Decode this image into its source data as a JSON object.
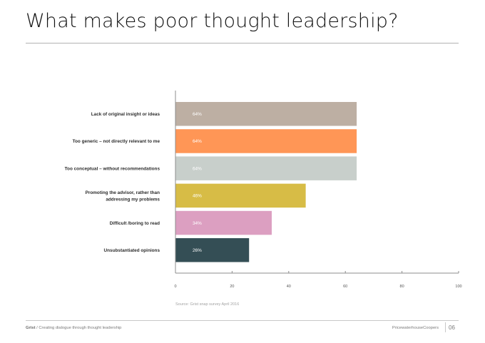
{
  "page": {
    "title": "What makes poor thought leadership?",
    "source": "Source: Grist snap survey April 2016",
    "footer": {
      "brand": "Grist",
      "tagline": " / Creating dialogue through thought leadership",
      "company": "PricewaterhouseCoopers",
      "page_number": "06"
    }
  },
  "chart_data": {
    "type": "bar",
    "orientation": "horizontal",
    "categories": [
      "Lack of original insight or ideas",
      "Too generic – not directly relevant to me",
      "Too conceptual – without recommendations",
      "Promoting the advisor, rather than addressing my problems",
      "Difficult /boring to read",
      "Unsubstantiated opinions"
    ],
    "label_lines": [
      [
        "Lack of original insight or ideas"
      ],
      [
        "Too generic – not directly relevant to me"
      ],
      [
        "Too conceptual – without recommendations"
      ],
      [
        "Promoting the advisor, rather than",
        "addressing my problems"
      ],
      [
        "Difficult /boring to read"
      ],
      [
        "Unsubstantiated opinions"
      ]
    ],
    "values": [
      64,
      64,
      64,
      46,
      34,
      26
    ],
    "value_labels": [
      "64%",
      "64%",
      "64%",
      "46%",
      "34%",
      "26%"
    ],
    "colors": [
      "#bdafa3",
      "#ff9656",
      "#c8cfcb",
      "#d7bc46",
      "#dc9fc1",
      "#344e55"
    ],
    "xlim": [
      0,
      100
    ],
    "xticks": [
      0,
      20,
      40,
      60,
      80,
      100
    ],
    "xtick_labels": [
      "0",
      "20",
      "40",
      "60",
      "80",
      "100"
    ],
    "grid": false,
    "legend": false
  }
}
